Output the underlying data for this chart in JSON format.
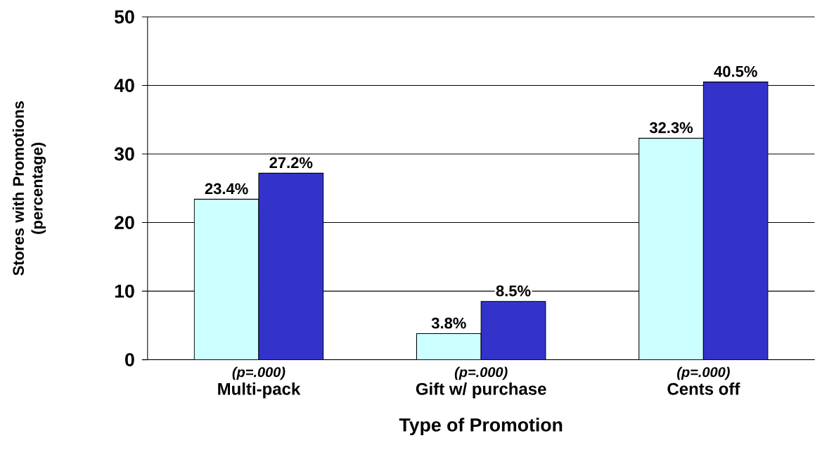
{
  "chart_data": {
    "type": "bar",
    "xlabel": "Type of Promotion",
    "ylabel": "Stores with Promotions (percentage)",
    "categories": [
      "Multi-pack",
      "Gift w/ purchase",
      "Cents off"
    ],
    "annotations": [
      "(p=.000)",
      "(p=.000)",
      "(p=.000)"
    ],
    "series": [
      {
        "color": "#ccffff",
        "values": [
          23.4,
          3.8,
          32.3
        ],
        "value_labels": [
          "23.4%",
          "3.8%",
          "32.3%"
        ]
      },
      {
        "color": "#3333cc",
        "values": [
          27.2,
          8.5,
          40.5
        ],
        "value_labels": [
          "27.2%",
          "8.5%",
          "40.5%"
        ]
      }
    ],
    "ylim": [
      0,
      50
    ],
    "yticks": [
      0,
      10,
      20,
      30,
      40,
      50
    ],
    "grid": "y"
  }
}
